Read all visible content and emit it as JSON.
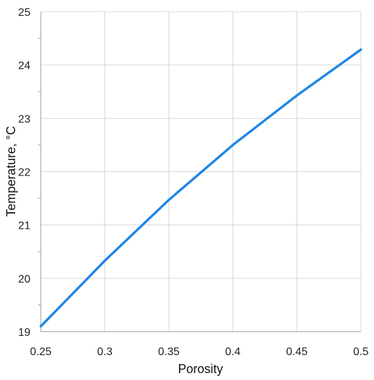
{
  "chart_data": {
    "type": "line",
    "title": "",
    "xlabel": "Porosity",
    "ylabel": "Temperature,  °C",
    "xlim": [
      0.25,
      0.5
    ],
    "ylim": [
      19,
      25
    ],
    "x_ticks": [
      "0.25",
      "0.3",
      "0.35",
      "0.4",
      "0.45",
      "0.5"
    ],
    "y_ticks": [
      "19",
      "20",
      "21",
      "22",
      "23",
      "24",
      "25"
    ],
    "grid": true,
    "legend": "none",
    "series": [
      {
        "color": "#1f86e6",
        "x": [
          0.25,
          0.3,
          0.35,
          0.4,
          0.45,
          0.5
        ],
        "y": [
          19.1,
          20.33,
          21.47,
          22.5,
          23.43,
          24.29
        ]
      }
    ]
  }
}
